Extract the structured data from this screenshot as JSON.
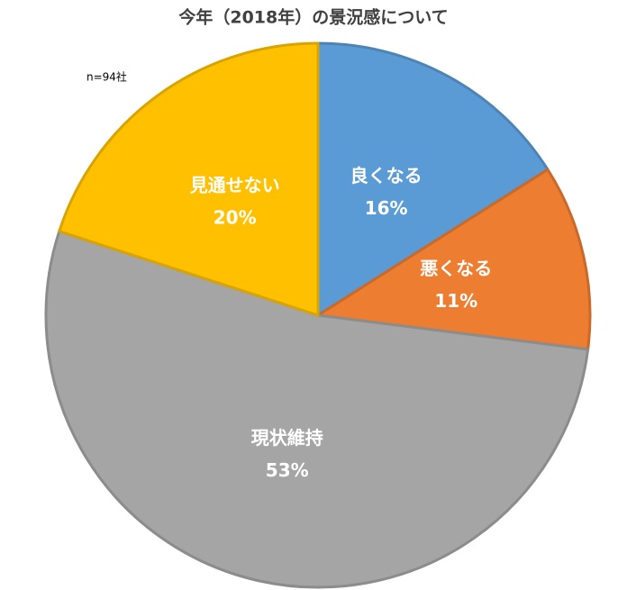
{
  "chart_data": {
    "type": "pie",
    "title": "今年（2018年）の景況感について",
    "annotation": "n=94社",
    "categories": [
      "良くなる",
      "悪くなる",
      "現状維持",
      "見通せない"
    ],
    "values": [
      16,
      11,
      53,
      20
    ],
    "value_labels": [
      "16%",
      "11%",
      "53%",
      "20%"
    ],
    "colors": [
      "#5b9bd5",
      "#ed7d31",
      "#a5a5a5",
      "#ffc000"
    ]
  }
}
